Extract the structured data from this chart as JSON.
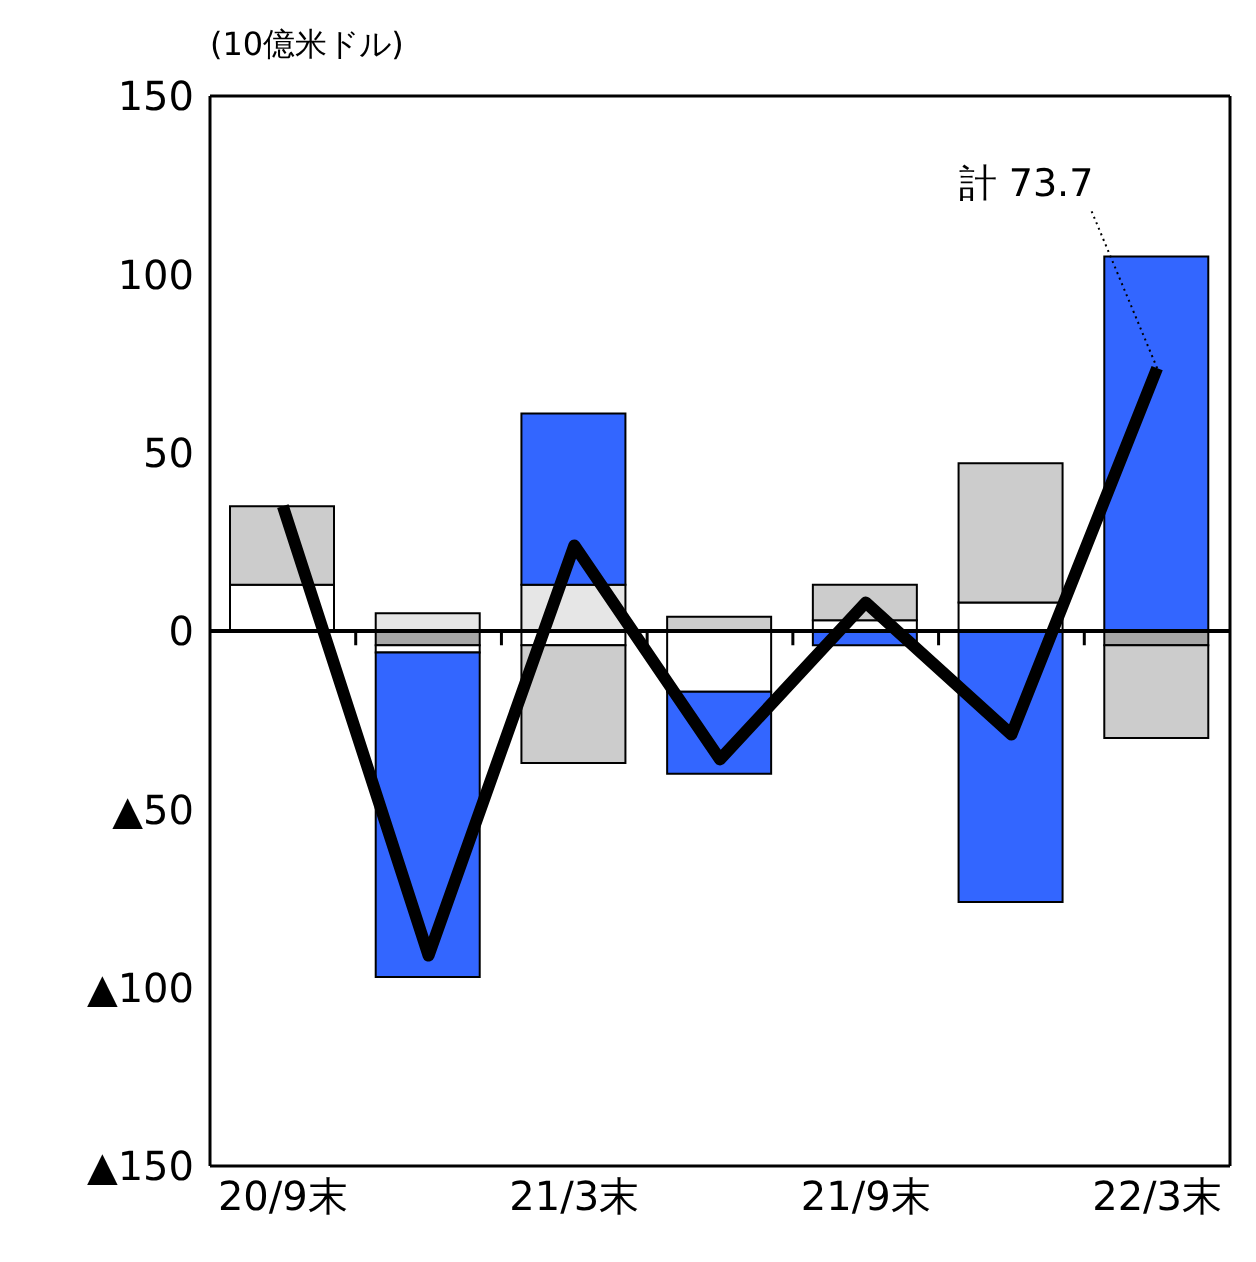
{
  "chart_data": {
    "type": "bar",
    "stacked": true,
    "ylabel": "(10億米ドル)",
    "categories": [
      "20/9末",
      null,
      "21/3末",
      null,
      "21/9末",
      null,
      "22/3末"
    ],
    "series": [
      {
        "color": "#a6a6a6",
        "values": [
          null,
          -4,
          null,
          null,
          null,
          null,
          -4
        ]
      },
      {
        "color": "#e6e6e6",
        "values": [
          null,
          5,
          13,
          null,
          null,
          null,
          null
        ]
      },
      {
        "color": "#ffffff",
        "values": [
          13,
          -2,
          -4,
          -17,
          3,
          8,
          null
        ]
      },
      {
        "color": "#cccccc",
        "values": [
          22,
          null,
          -33,
          4,
          10,
          39,
          -26
        ]
      },
      {
        "color": "#3366ff",
        "values": [
          null,
          -91,
          48,
          -23,
          -4,
          -76,
          105
        ]
      },
      {
        "type": "line",
        "color": "#000000",
        "values": [
          35,
          -91,
          24,
          -36,
          8,
          -29,
          73.7
        ]
      }
    ],
    "ylim": [
      -150,
      150
    ],
    "yticks": [
      {
        "value": -150,
        "label": "▲150"
      },
      {
        "value": -100,
        "label": "▲100"
      },
      {
        "value": -50,
        "label": "▲50"
      },
      0,
      50,
      100,
      150
    ],
    "annotations": [
      {
        "text": "計 73.7",
        "x": "22/3末",
        "y": 73.7
      }
    ],
    "ref_lines": [
      {
        "axis": "y",
        "value": 0,
        "color": "#000000"
      }
    ],
    "marker": "none",
    "grid": false,
    "legend": false
  }
}
